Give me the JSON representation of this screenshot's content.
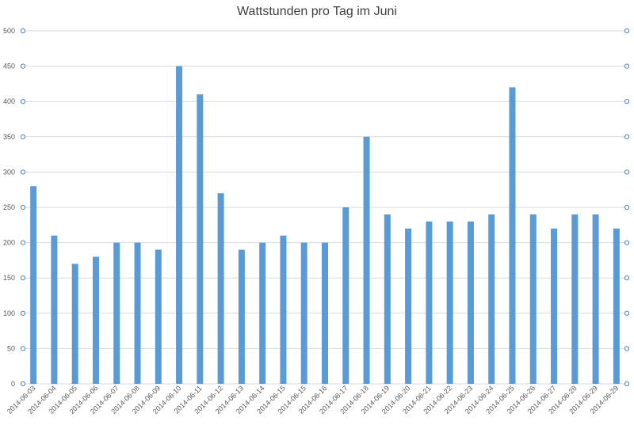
{
  "chart_data": {
    "type": "bar",
    "title": "Wattstunden pro Tag im Juni",
    "xlabel": "",
    "ylabel": "",
    "ylim": [
      0,
      500
    ],
    "yticks": [
      0,
      50,
      100,
      150,
      200,
      250,
      300,
      350,
      400,
      450,
      500
    ],
    "grid": true,
    "bar_color": "#5b9bd5",
    "secondary_axis_marker_color": "#4f81bd",
    "categories": [
      "2014-06-03",
      "2014-06-04",
      "2014-06-05",
      "2014-06-06",
      "2014-06-07",
      "2014-06-08",
      "2014-06-09",
      "2014-06-10",
      "2014-06-11",
      "2014-06-12",
      "2014-06-13",
      "2014-06-14",
      "2014-06-15",
      "2014-06-15",
      "2014-06-16",
      "2014-06-17",
      "2014-06-18",
      "2014-06-19",
      "2014-06-20",
      "2014-06-21",
      "2014-06-22",
      "2014-06-23",
      "2014-06-24",
      "2014-06-25",
      "2014-06-26",
      "2014-06-27",
      "2014-06-28",
      "2014-06-29",
      "2014-06-29"
    ],
    "values": [
      280,
      210,
      170,
      180,
      200,
      200,
      190,
      450,
      410,
      270,
      190,
      200,
      210,
      200,
      200,
      250,
      350,
      240,
      220,
      230,
      230,
      230,
      240,
      420,
      240,
      220,
      240,
      240,
      220
    ]
  }
}
